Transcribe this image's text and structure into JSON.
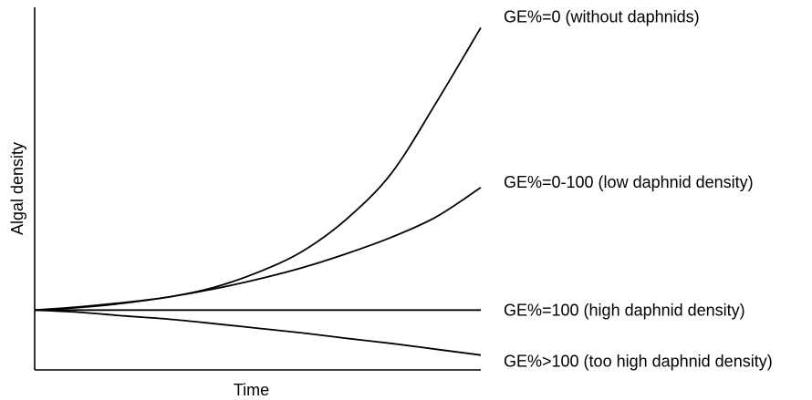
{
  "chart_data": {
    "type": "line",
    "title": "",
    "xlabel": "Time",
    "ylabel": "Algal density",
    "grid": false,
    "legend": "direct labels at right end of each curve",
    "x": [
      0,
      1,
      2,
      3,
      4,
      5,
      6,
      7,
      8,
      9,
      10
    ],
    "ylim": [
      0,
      10
    ],
    "series": [
      {
        "name": "GE%=0 (without daphnids)",
        "values": [
          1.65,
          1.74,
          1.86,
          2.01,
          2.27,
          2.69,
          3.27,
          4.17,
          5.43,
          7.37,
          9.44
        ],
        "color": "#000000"
      },
      {
        "name": "GE%=0-100 (low daphnid density)",
        "values": [
          1.65,
          1.72,
          1.84,
          2.01,
          2.23,
          2.5,
          2.82,
          3.21,
          3.66,
          4.22,
          5.03
        ],
        "color": "#000000"
      },
      {
        "name": "GE%=100 (high daphnid density)",
        "values": [
          1.65,
          1.65,
          1.65,
          1.65,
          1.65,
          1.65,
          1.65,
          1.65,
          1.65,
          1.65,
          1.65
        ],
        "color": "#000000"
      },
      {
        "name": "GE%>100 (too high daphnid density)",
        "values": [
          1.65,
          1.59,
          1.49,
          1.4,
          1.28,
          1.15,
          1.02,
          0.87,
          0.73,
          0.57,
          0.41
        ],
        "color": "#000000"
      }
    ]
  }
}
